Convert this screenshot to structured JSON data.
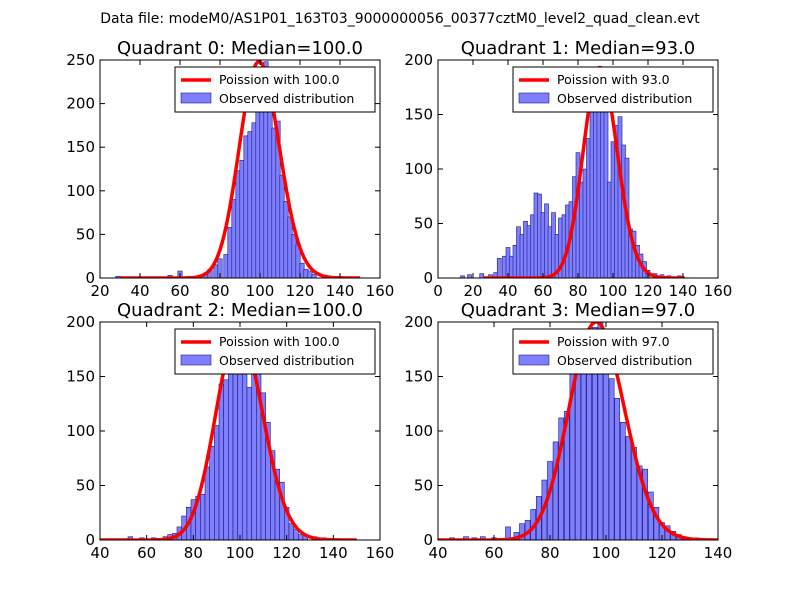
{
  "suptitle": "Data file: modeM0/AS1P01_163T03_9000000056_00377cztM0_level2_quad_clean.evt",
  "colors": {
    "bar_fill": "#7f7ffc",
    "bar_edge": "#1a1a8c",
    "curve": "#ff0000",
    "axes": "#000000",
    "background": "#ffffff"
  },
  "chart_data": [
    {
      "type": "bar",
      "title": "Quadrant 0: Median=100.0",
      "median": 100.0,
      "xlim": [
        20,
        160
      ],
      "ylim": [
        0,
        250
      ],
      "xticks": [
        20,
        40,
        60,
        80,
        100,
        120,
        140,
        160
      ],
      "yticks": [
        0,
        50,
        100,
        150,
        200,
        250
      ],
      "legend": [
        "Poission with 100.0",
        "Observed distribution"
      ],
      "bin_width": 2.2,
      "bins": [
        {
          "x": 29,
          "y": 2
        },
        {
          "x": 55,
          "y": 3
        },
        {
          "x": 60,
          "y": 8
        },
        {
          "x": 65,
          "y": 2
        },
        {
          "x": 70,
          "y": 3
        },
        {
          "x": 73,
          "y": 6
        },
        {
          "x": 75,
          "y": 10
        },
        {
          "x": 78,
          "y": 15
        },
        {
          "x": 80,
          "y": 22
        },
        {
          "x": 83,
          "y": 27
        },
        {
          "x": 85,
          "y": 58
        },
        {
          "x": 87,
          "y": 90
        },
        {
          "x": 89,
          "y": 123
        },
        {
          "x": 91,
          "y": 135
        },
        {
          "x": 93,
          "y": 163
        },
        {
          "x": 95,
          "y": 168
        },
        {
          "x": 97,
          "y": 178
        },
        {
          "x": 99,
          "y": 192
        },
        {
          "x": 101,
          "y": 212
        },
        {
          "x": 103,
          "y": 248
        },
        {
          "x": 105,
          "y": 205
        },
        {
          "x": 107,
          "y": 172
        },
        {
          "x": 109,
          "y": 180
        },
        {
          "x": 111,
          "y": 118
        },
        {
          "x": 113,
          "y": 88
        },
        {
          "x": 115,
          "y": 70
        },
        {
          "x": 117,
          "y": 50
        },
        {
          "x": 119,
          "y": 38
        },
        {
          "x": 121,
          "y": 17
        },
        {
          "x": 123,
          "y": 10
        },
        {
          "x": 125,
          "y": 8
        },
        {
          "x": 127,
          "y": 4
        }
      ]
    },
    {
      "type": "bar",
      "title": "Quadrant 1: Median=93.0",
      "median": 93.0,
      "xlim": [
        0,
        160
      ],
      "ylim": [
        0,
        200
      ],
      "xticks": [
        0,
        20,
        40,
        60,
        80,
        100,
        120,
        140,
        160
      ],
      "yticks": [
        0,
        50,
        100,
        150,
        200
      ],
      "legend": [
        "Poission with 93.0",
        "Observed distribution"
      ],
      "bin_width": 2.3,
      "bins": [
        {
          "x": 14,
          "y": 2
        },
        {
          "x": 18,
          "y": 3
        },
        {
          "x": 25,
          "y": 4
        },
        {
          "x": 30,
          "y": 3
        },
        {
          "x": 33,
          "y": 5
        },
        {
          "x": 35,
          "y": 18
        },
        {
          "x": 38,
          "y": 20
        },
        {
          "x": 40,
          "y": 28
        },
        {
          "x": 42,
          "y": 20
        },
        {
          "x": 44,
          "y": 30
        },
        {
          "x": 46,
          "y": 47
        },
        {
          "x": 48,
          "y": 40
        },
        {
          "x": 50,
          "y": 52
        },
        {
          "x": 52,
          "y": 48
        },
        {
          "x": 54,
          "y": 58
        },
        {
          "x": 56,
          "y": 78
        },
        {
          "x": 58,
          "y": 77
        },
        {
          "x": 60,
          "y": 60
        },
        {
          "x": 62,
          "y": 68
        },
        {
          "x": 64,
          "y": 47
        },
        {
          "x": 66,
          "y": 60
        },
        {
          "x": 68,
          "y": 40
        },
        {
          "x": 70,
          "y": 55
        },
        {
          "x": 72,
          "y": 58
        },
        {
          "x": 74,
          "y": 67
        },
        {
          "x": 76,
          "y": 70
        },
        {
          "x": 78,
          "y": 93
        },
        {
          "x": 80,
          "y": 115
        },
        {
          "x": 82,
          "y": 88
        },
        {
          "x": 84,
          "y": 100
        },
        {
          "x": 86,
          "y": 128
        },
        {
          "x": 88,
          "y": 155
        },
        {
          "x": 90,
          "y": 193
        },
        {
          "x": 92,
          "y": 160
        },
        {
          "x": 94,
          "y": 157
        },
        {
          "x": 96,
          "y": 170
        },
        {
          "x": 98,
          "y": 88
        },
        {
          "x": 100,
          "y": 125
        },
        {
          "x": 102,
          "y": 140
        },
        {
          "x": 104,
          "y": 148
        },
        {
          "x": 106,
          "y": 122
        },
        {
          "x": 108,
          "y": 110
        },
        {
          "x": 110,
          "y": 45
        },
        {
          "x": 112,
          "y": 43
        },
        {
          "x": 114,
          "y": 30
        },
        {
          "x": 116,
          "y": 22
        },
        {
          "x": 118,
          "y": 15
        },
        {
          "x": 120,
          "y": 7
        },
        {
          "x": 124,
          "y": 4
        },
        {
          "x": 128,
          "y": 3
        },
        {
          "x": 132,
          "y": 2
        },
        {
          "x": 138,
          "y": 2
        }
      ]
    },
    {
      "type": "bar",
      "title": "Quadrant 2: Median=100.0",
      "median": 100.0,
      "xlim": [
        40,
        160
      ],
      "ylim": [
        0,
        200
      ],
      "xticks": [
        40,
        60,
        80,
        100,
        120,
        140,
        160
      ],
      "yticks": [
        0,
        50,
        100,
        150,
        200
      ],
      "legend": [
        "Poission with 100.0",
        "Observed distribution"
      ],
      "bin_width": 2.0,
      "bins": [
        {
          "x": 53,
          "y": 3
        },
        {
          "x": 58,
          "y": 2
        },
        {
          "x": 63,
          "y": 2
        },
        {
          "x": 68,
          "y": 3
        },
        {
          "x": 70,
          "y": 5
        },
        {
          "x": 72,
          "y": 6
        },
        {
          "x": 74,
          "y": 12
        },
        {
          "x": 76,
          "y": 22
        },
        {
          "x": 78,
          "y": 30
        },
        {
          "x": 80,
          "y": 37
        },
        {
          "x": 82,
          "y": 40
        },
        {
          "x": 84,
          "y": 42
        },
        {
          "x": 86,
          "y": 67
        },
        {
          "x": 88,
          "y": 86
        },
        {
          "x": 90,
          "y": 105
        },
        {
          "x": 92,
          "y": 143
        },
        {
          "x": 94,
          "y": 147
        },
        {
          "x": 96,
          "y": 160
        },
        {
          "x": 98,
          "y": 192
        },
        {
          "x": 100,
          "y": 188
        },
        {
          "x": 102,
          "y": 155
        },
        {
          "x": 104,
          "y": 140
        },
        {
          "x": 106,
          "y": 170
        },
        {
          "x": 108,
          "y": 163
        },
        {
          "x": 110,
          "y": 135
        },
        {
          "x": 112,
          "y": 108
        },
        {
          "x": 114,
          "y": 82
        },
        {
          "x": 116,
          "y": 65
        },
        {
          "x": 118,
          "y": 53
        },
        {
          "x": 120,
          "y": 30
        },
        {
          "x": 122,
          "y": 15
        },
        {
          "x": 124,
          "y": 10
        },
        {
          "x": 126,
          "y": 5
        },
        {
          "x": 128,
          "y": 4
        },
        {
          "x": 132,
          "y": 3
        },
        {
          "x": 136,
          "y": 2
        }
      ]
    },
    {
      "type": "bar",
      "title": "Quadrant 3: Median=97.0",
      "median": 97.0,
      "xlim": [
        40,
        140
      ],
      "ylim": [
        0,
        200
      ],
      "xticks": [
        40,
        60,
        80,
        100,
        120,
        140
      ],
      "yticks": [
        0,
        50,
        100,
        150,
        200
      ],
      "legend": [
        "Poission with 97.0",
        "Observed distribution"
      ],
      "bin_width": 1.8,
      "bins": [
        {
          "x": 45,
          "y": 2
        },
        {
          "x": 50,
          "y": 3
        },
        {
          "x": 53,
          "y": 2
        },
        {
          "x": 56,
          "y": 3
        },
        {
          "x": 60,
          "y": 2
        },
        {
          "x": 65,
          "y": 12
        },
        {
          "x": 68,
          "y": 7
        },
        {
          "x": 70,
          "y": 15
        },
        {
          "x": 72,
          "y": 18
        },
        {
          "x": 74,
          "y": 28
        },
        {
          "x": 76,
          "y": 40
        },
        {
          "x": 78,
          "y": 55
        },
        {
          "x": 80,
          "y": 72
        },
        {
          "x": 82,
          "y": 90
        },
        {
          "x": 84,
          "y": 112
        },
        {
          "x": 86,
          "y": 118
        },
        {
          "x": 88,
          "y": 158
        },
        {
          "x": 90,
          "y": 160
        },
        {
          "x": 92,
          "y": 175
        },
        {
          "x": 94,
          "y": 183
        },
        {
          "x": 96,
          "y": 195
        },
        {
          "x": 98,
          "y": 200
        },
        {
          "x": 100,
          "y": 165
        },
        {
          "x": 102,
          "y": 148
        },
        {
          "x": 104,
          "y": 130
        },
        {
          "x": 106,
          "y": 108
        },
        {
          "x": 108,
          "y": 95
        },
        {
          "x": 110,
          "y": 85
        },
        {
          "x": 112,
          "y": 68
        },
        {
          "x": 114,
          "y": 65
        },
        {
          "x": 116,
          "y": 44
        },
        {
          "x": 118,
          "y": 30
        },
        {
          "x": 120,
          "y": 16
        },
        {
          "x": 122,
          "y": 13
        },
        {
          "x": 124,
          "y": 8
        },
        {
          "x": 126,
          "y": 5
        },
        {
          "x": 128,
          "y": 3
        },
        {
          "x": 132,
          "y": 2
        }
      ]
    }
  ]
}
